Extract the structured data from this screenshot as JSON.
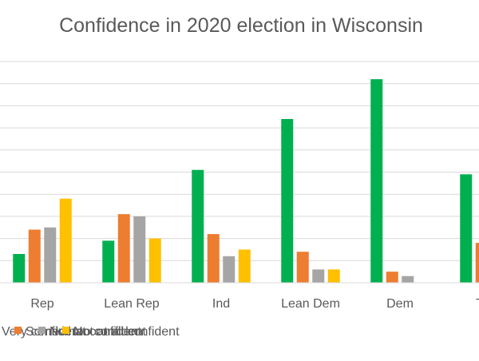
{
  "chart_data": {
    "type": "bar",
    "title": "Confidence in 2020 election in Wisconsin",
    "categories": [
      "Rep",
      "Lean Rep",
      "Ind",
      "Lean Dem",
      "Dem",
      "Total"
    ],
    "series": [
      {
        "name": "Very confident",
        "color": "#00b050",
        "values": [
          13,
          19,
          51,
          74,
          92,
          49
        ]
      },
      {
        "name": "Somewhat confident",
        "color": "#ed7d31",
        "values": [
          24,
          31,
          22,
          14,
          5,
          18
        ]
      },
      {
        "name": "Not too confident",
        "color": "#a5a5a5",
        "values": [
          25,
          30,
          12,
          6,
          3,
          0
        ]
      },
      {
        "name": "Not at all confident",
        "color": "#ffc000",
        "values": [
          38,
          20,
          15,
          6,
          0,
          0
        ]
      }
    ],
    "xlabel": "",
    "ylabel": "",
    "ylim": [
      0,
      100
    ],
    "grid": true,
    "legend_position": "bottom"
  }
}
